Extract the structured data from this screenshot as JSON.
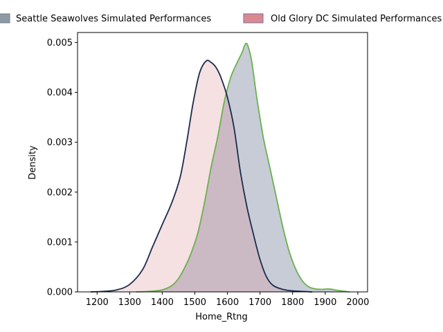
{
  "chart_data": {
    "type": "area",
    "title": "",
    "xlabel": "Home_Rtng",
    "ylabel": "Density",
    "xlim": [
      1140,
      2030
    ],
    "ylim": [
      0,
      0.0052
    ],
    "xticks": [
      1200,
      1300,
      1400,
      1500,
      1600,
      1700,
      1800,
      1900,
      2000
    ],
    "yticks": [
      0.0,
      0.001,
      0.002,
      0.003,
      0.004,
      0.005
    ],
    "ytick_labels": [
      "0.000",
      "0.001",
      "0.002",
      "0.003",
      "0.004",
      "0.005"
    ],
    "grid": false,
    "legend_position": "top",
    "series": [
      {
        "name": "Seattle Seawolves Simulated Performances",
        "fill_color": "#1f3260",
        "line_color": "#6ab04c",
        "legend_swatch_color": "#8e9aa3",
        "points": [
          [
            1320,
            0.0
          ],
          [
            1360,
            1e-05
          ],
          [
            1400,
            4e-05
          ],
          [
            1430,
            0.00013
          ],
          [
            1450,
            0.00027
          ],
          [
            1470,
            0.0005
          ],
          [
            1490,
            0.0008
          ],
          [
            1510,
            0.0012
          ],
          [
            1530,
            0.0018
          ],
          [
            1550,
            0.0025
          ],
          [
            1570,
            0.0031
          ],
          [
            1590,
            0.0038
          ],
          [
            1610,
            0.0043
          ],
          [
            1630,
            0.0046
          ],
          [
            1645,
            0.0048
          ],
          [
            1655,
            0.00497
          ],
          [
            1663,
            0.00493
          ],
          [
            1675,
            0.0046
          ],
          [
            1690,
            0.0039
          ],
          [
            1710,
            0.0031
          ],
          [
            1730,
            0.0025
          ],
          [
            1750,
            0.0019
          ],
          [
            1770,
            0.0013
          ],
          [
            1790,
            0.0008
          ],
          [
            1810,
            0.00045
          ],
          [
            1830,
            0.00022
          ],
          [
            1850,
            0.0001
          ],
          [
            1870,
            6e-05
          ],
          [
            1890,
            5e-05
          ],
          [
            1910,
            6e-05
          ],
          [
            1930,
            4e-05
          ],
          [
            1950,
            2e-05
          ],
          [
            1975,
            0.0
          ]
        ]
      },
      {
        "name": "Old Glory DC Simulated Performances",
        "fill_color": "#d9838c",
        "line_color": "#1a2a4a",
        "legend_swatch_color": "#d98a91",
        "points": [
          [
            1180,
            0.0
          ],
          [
            1220,
            1e-05
          ],
          [
            1260,
            4e-05
          ],
          [
            1300,
            0.00015
          ],
          [
            1340,
            0.00045
          ],
          [
            1370,
            0.0009
          ],
          [
            1400,
            0.00135
          ],
          [
            1430,
            0.0018
          ],
          [
            1455,
            0.0023
          ],
          [
            1475,
            0.003
          ],
          [
            1495,
            0.0038
          ],
          [
            1515,
            0.0044
          ],
          [
            1535,
            0.00463
          ],
          [
            1550,
            0.0046
          ],
          [
            1565,
            0.0045
          ],
          [
            1580,
            0.0043
          ],
          [
            1600,
            0.0039
          ],
          [
            1620,
            0.0033
          ],
          [
            1640,
            0.0024
          ],
          [
            1660,
            0.0017
          ],
          [
            1680,
            0.00115
          ],
          [
            1700,
            0.00065
          ],
          [
            1720,
            0.0003
          ],
          [
            1740,
            0.00013
          ],
          [
            1770,
            5e-05
          ],
          [
            1800,
            2e-05
          ],
          [
            1860,
            0.0
          ]
        ]
      }
    ]
  }
}
